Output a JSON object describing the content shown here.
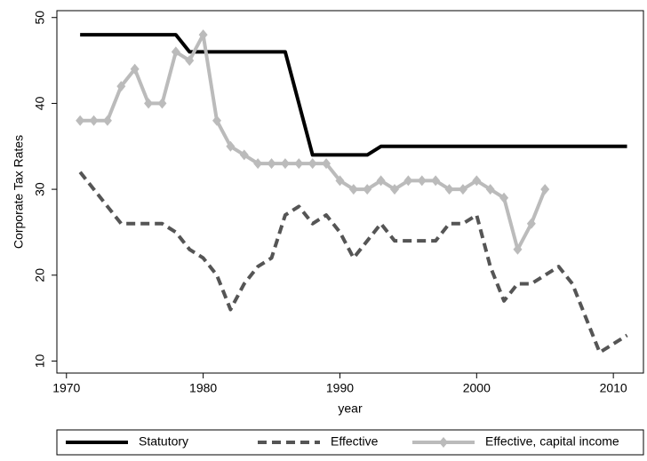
{
  "chart_data": {
    "type": "line",
    "x_label": "year",
    "y_label": "Corporate Tax Rates",
    "x": [
      1971,
      1972,
      1973,
      1974,
      1975,
      1976,
      1977,
      1978,
      1979,
      1980,
      1981,
      1982,
      1983,
      1984,
      1985,
      1986,
      1987,
      1988,
      1989,
      1990,
      1991,
      1992,
      1993,
      1994,
      1995,
      1996,
      1997,
      1998,
      1999,
      2000,
      2001,
      2002,
      2003,
      2004,
      2005,
      2006,
      2007,
      2008,
      2009,
      2010,
      2011
    ],
    "series": [
      {
        "name": "Statutory",
        "color": "#000000",
        "style": "solid",
        "values": [
          48,
          48,
          48,
          48,
          48,
          48,
          48,
          48,
          46,
          46,
          46,
          46,
          46,
          46,
          46,
          46,
          40,
          34,
          34,
          34,
          34,
          34,
          35,
          35,
          35,
          35,
          35,
          35,
          35,
          35,
          35,
          35,
          35,
          35,
          35,
          35,
          35,
          35,
          35,
          35,
          35
        ]
      },
      {
        "name": "Effective",
        "color": "#555555",
        "style": "dashed",
        "values": [
          32,
          30,
          28,
          26,
          26,
          26,
          26,
          25,
          23,
          22,
          20,
          16,
          19,
          21,
          22,
          27,
          28,
          26,
          27,
          25,
          22,
          24,
          26,
          24,
          24,
          24,
          24,
          26,
          26,
          27,
          21,
          17,
          19,
          19,
          20,
          21,
          19,
          15,
          11,
          12,
          13
        ]
      },
      {
        "name": "Effective, capital income",
        "color": "#bbbbbb",
        "style": "solid",
        "marker": "diamond",
        "values": [
          38,
          38,
          38,
          42,
          44,
          40,
          40,
          46,
          45,
          48,
          38,
          35,
          34,
          33,
          33,
          33,
          33,
          33,
          33,
          31,
          30,
          30,
          31,
          30,
          31,
          31,
          31,
          30,
          30,
          31,
          30,
          29,
          23,
          26,
          30,
          null,
          null,
          null,
          null,
          null,
          null
        ]
      }
    ],
    "xlim": [
      1969.3,
      2012.2
    ],
    "xticks": [
      1970,
      1980,
      1990,
      2000,
      2010
    ],
    "ylim": [
      8.6,
      50.8
    ],
    "yticks": [
      10,
      20,
      30,
      40,
      50
    ],
    "legend": "bottom"
  }
}
